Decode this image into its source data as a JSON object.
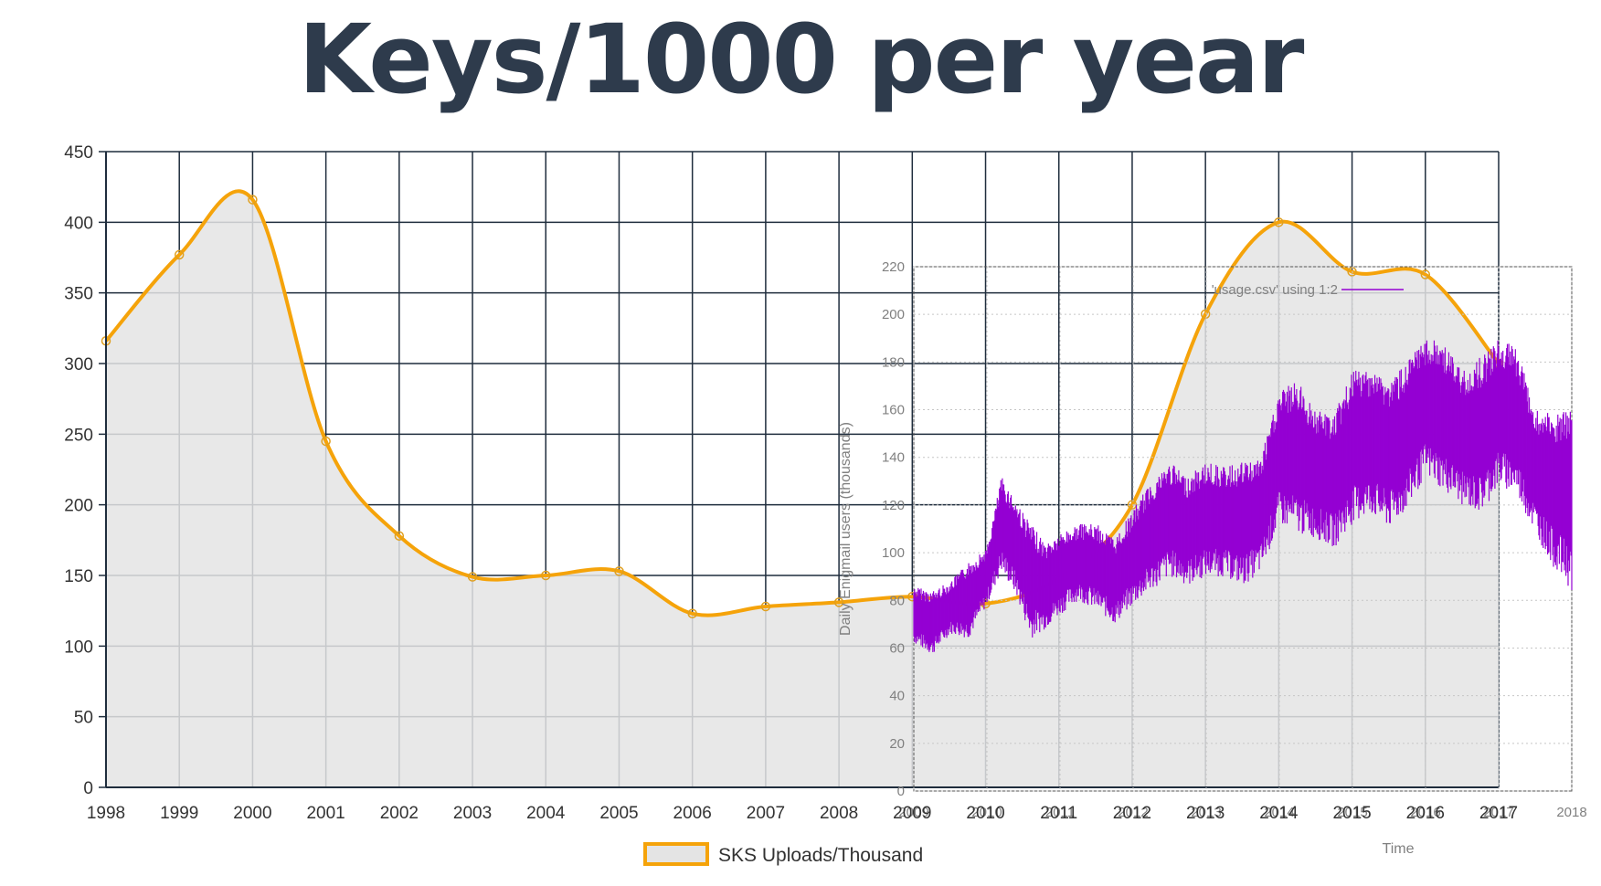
{
  "page": {
    "title": "Keys/1000 per year"
  },
  "colors": {
    "title": "#2e3b4c",
    "sks_line": "#f5a30a",
    "sks_fill": "#e4e4e4",
    "main_grid": "#1f2d3d",
    "inset_line": "#9400d3",
    "inset_grid": "#c6c6c6",
    "inset_text": "#808080"
  },
  "chart_data": [
    {
      "type": "area",
      "title": "",
      "xlabel": "",
      "ylabel": "",
      "x": [
        1998,
        1999,
        2000,
        2001,
        2002,
        2003,
        2004,
        2005,
        2006,
        2007,
        2008,
        2009,
        2010,
        2011,
        2012,
        2013,
        2014,
        2015,
        2016,
        2017
      ],
      "x_ticks": [
        "1998",
        "1999",
        "2000",
        "2001",
        "2002",
        "2003",
        "2004",
        "2005",
        "2006",
        "2007",
        "2008",
        "2009",
        "2010",
        "2011",
        "2012",
        "2013",
        "2014",
        "2015",
        "2016",
        "2017"
      ],
      "y_ticks": [
        "0",
        "50",
        "100",
        "150",
        "200",
        "250",
        "300",
        "350",
        "400",
        "450"
      ],
      "ylim": [
        0,
        450
      ],
      "grid": true,
      "legend_position": "bottom-center",
      "series": [
        {
          "name": "SKS Uploads/Thousand",
          "values": [
            316,
            377,
            416,
            245,
            178,
            149,
            150,
            153,
            123,
            128,
            131,
            135,
            130,
            148,
            200,
            335,
            400,
            365,
            363,
            300
          ]
        }
      ]
    },
    {
      "type": "line",
      "title": "",
      "xlabel": "Time",
      "ylabel": "Daily Enigmail users (thousands)",
      "x_ticks": [
        "2009",
        "2010",
        "2011",
        "2012",
        "2013",
        "2014",
        "2015",
        "2016",
        "2017",
        "2018"
      ],
      "y_ticks": [
        "0",
        "20",
        "40",
        "60",
        "80",
        "100",
        "120",
        "140",
        "160",
        "180",
        "200",
        "220"
      ],
      "xlim": [
        2009,
        2018
      ],
      "ylim": [
        0,
        220
      ],
      "grid": true,
      "legend_position": "top-right",
      "series": [
        {
          "name": "'usage.csv' using 1:2",
          "x": [
            2009.0,
            2009.25,
            2009.5,
            2009.75,
            2010.0,
            2010.2,
            2010.4,
            2010.6,
            2010.8,
            2011.0,
            2011.25,
            2011.5,
            2011.75,
            2012.0,
            2012.25,
            2012.5,
            2012.75,
            2013.0,
            2013.25,
            2013.5,
            2013.75,
            2014.0,
            2014.25,
            2014.5,
            2014.75,
            2015.0,
            2015.25,
            2015.5,
            2015.75,
            2016.0,
            2016.25,
            2016.5,
            2016.75,
            2017.0,
            2017.25,
            2017.5,
            2017.75,
            2018.0
          ],
          "low": [
            62,
            57,
            66,
            64,
            78,
            92,
            82,
            64,
            68,
            74,
            80,
            76,
            70,
            78,
            84,
            90,
            86,
            90,
            90,
            86,
            92,
            112,
            108,
            106,
            102,
            112,
            116,
            110,
            118,
            132,
            126,
            120,
            116,
            128,
            124,
            108,
            94,
            84
          ],
          "high": [
            86,
            84,
            88,
            96,
            102,
            132,
            122,
            112,
            104,
            108,
            112,
            112,
            106,
            118,
            130,
            138,
            132,
            138,
            136,
            138,
            140,
            168,
            172,
            160,
            158,
            176,
            178,
            172,
            180,
            190,
            188,
            176,
            182,
            190,
            186,
            160,
            158,
            160
          ]
        }
      ]
    }
  ]
}
